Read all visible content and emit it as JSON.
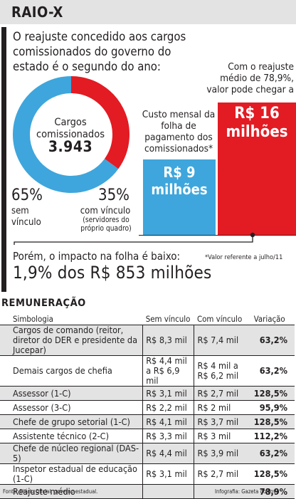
{
  "header": {
    "title": "RAIO-X"
  },
  "intro": {
    "text": "O reajuste concedido aos cargos comissionados do governo do estado é o segundo do ano:"
  },
  "donut": {
    "center_label": "Cargos comissionados",
    "center_value": "3.943",
    "left_pct": "65%",
    "left_label": "sem vínculo",
    "right_pct": "35%",
    "right_label": "com vínculo",
    "right_sub": "(servidores do próprio quadro)"
  },
  "bars": {
    "blue_note": "Custo mensal da folha de pagamento dos comissionados*",
    "blue_value": "R$ 9 milhões",
    "red_note": "Com o reajuste médio de 78,9%, valor pode chegar a",
    "red_value": "R$ 16 milhões"
  },
  "impact": {
    "line1": "Porém, o impacto na folha é baixo:",
    "line2": "1,9% dos R$ 853 milhões"
  },
  "footnote": "*Valor referente a julho/11",
  "table": {
    "title": "REMUNERAÇÃO",
    "headers": [
      "Simbologia",
      "Sem vínculo",
      "Com vínculo",
      "Variação"
    ],
    "rows": [
      {
        "simb": "Cargos de comando (reitor, diretor do DER e presidente da Jucepar)",
        "sem": "R$ 8,3 mil",
        "com": "R$ 7,4 mil",
        "var": "63,2%"
      },
      {
        "simb": "Demais cargos de chefia",
        "sem": "R$ 4,4 mil a R$ 6,9 mil",
        "com": "R$ 4 mil a R$ 6,2 mil",
        "var": "63,2%"
      },
      {
        "simb": "Assessor (1-C)",
        "sem": "R$ 3,1 mil",
        "com": "R$ 2,7 mil",
        "var": "128,5%"
      },
      {
        "simb": "Assessor (3-C)",
        "sem": "R$ 2,2 mil",
        "com": "R$ 2 mil",
        "var": "95,9%"
      },
      {
        "simb": "Chefe de grupo setorial (1-C)",
        "sem": "R$ 4,1 mil",
        "com": "R$ 3,7 mil",
        "var": "128,5%"
      },
      {
        "simb": "Assistente técnico (2-C)",
        "sem": "R$ 3,3 mil",
        "com": "R$ 3 mil",
        "var": "112,2%"
      },
      {
        "simb": "Chefe de núcleo regional (DAS-5)",
        "sem": "R$ 4,4 mil",
        "com": "R$ 3,9 mil",
        "var": "63,2%"
      },
      {
        "simb": "Inspetor estadual de educação (1-C)",
        "sem": "R$ 3,1 mil",
        "com": "R$ 2,7 mil",
        "var": "128,5%"
      },
      {
        "simb": "Reajuste médio",
        "sem": "",
        "com": "",
        "var": "78,9%"
      }
    ]
  },
  "sources": {
    "left": "Fonte: Diário Oficial, governo estadual.",
    "right": "Infografia: Gazeta do Povo"
  },
  "colors": {
    "blue": "#3ea6dc",
    "red": "#e31b23",
    "gray": "#e3e3e4",
    "ink": "#231f20"
  },
  "chart_data": [
    {
      "type": "pie",
      "title": "Cargos comissionados 3.943",
      "categories": [
        "sem vínculo",
        "com vínculo"
      ],
      "values": [
        65,
        35
      ],
      "colors": [
        "#3ea6dc",
        "#e31b23"
      ]
    },
    {
      "type": "bar",
      "categories": [
        "Custo mensal da folha de pagamento dos comissionados*",
        "Com o reajuste médio de 78,9%, valor pode chegar a"
      ],
      "values": [
        9,
        16
      ],
      "colors": [
        "#3ea6dc",
        "#e31b23"
      ]
    }
  ]
}
